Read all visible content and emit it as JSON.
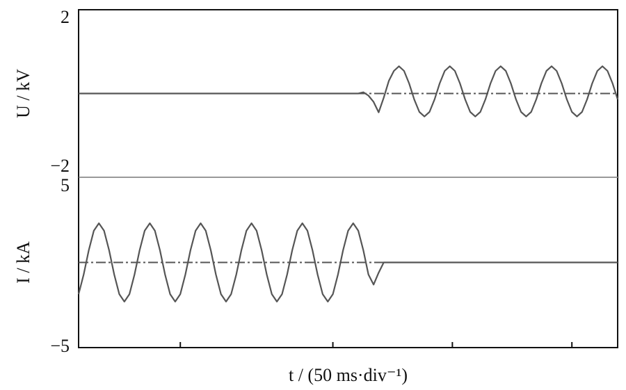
{
  "chart_data": [
    {
      "type": "line",
      "ylabel": "U / kV",
      "color": "#555555",
      "xlim": [
        0,
        212
      ],
      "ylim": [
        -2,
        2
      ],
      "yticks": [
        2,
        {
          "value": -2,
          "label": "−2"
        }
      ],
      "x": [
        0,
        110,
        112,
        114,
        116,
        118,
        120,
        122,
        124,
        126,
        128,
        130,
        132,
        134,
        136,
        138,
        140,
        142,
        144,
        146,
        148,
        150,
        152,
        154,
        156,
        158,
        160,
        162,
        164,
        166,
        168,
        170,
        172,
        174,
        176,
        178,
        180,
        182,
        184,
        186,
        188,
        190,
        192,
        194,
        196,
        198,
        200,
        202,
        204,
        206,
        208,
        210,
        212
      ],
      "values": [
        0,
        0,
        0.03,
        -0.05,
        -0.2,
        -0.45,
        -0.1,
        0.3,
        0.54,
        0.65,
        0.54,
        0.24,
        -0.14,
        -0.44,
        -0.55,
        -0.44,
        -0.14,
        0.24,
        0.54,
        0.65,
        0.54,
        0.24,
        -0.14,
        -0.44,
        -0.55,
        -0.44,
        -0.14,
        0.24,
        0.54,
        0.65,
        0.54,
        0.24,
        -0.14,
        -0.44,
        -0.55,
        -0.44,
        -0.14,
        0.24,
        0.54,
        0.65,
        0.54,
        0.24,
        -0.14,
        -0.44,
        -0.55,
        -0.44,
        -0.14,
        0.24,
        0.54,
        0.65,
        0.54,
        0.24,
        -0.14
      ]
    },
    {
      "type": "line",
      "ylabel": "I / kA",
      "xlabel": "t / (50 ms·div⁻¹)",
      "color": "#555555",
      "xlim": [
        0,
        212
      ],
      "ylim": [
        -5,
        5
      ],
      "yticks": [
        5,
        {
          "value": -5,
          "label": "−5"
        }
      ],
      "xticks": [
        40,
        100,
        147,
        194
      ],
      "x": [
        0,
        2,
        4,
        6,
        8,
        10,
        12,
        14,
        16,
        18,
        20,
        22,
        24,
        26,
        28,
        30,
        32,
        34,
        36,
        38,
        40,
        42,
        44,
        46,
        48,
        50,
        52,
        54,
        56,
        58,
        60,
        62,
        64,
        66,
        68,
        70,
        72,
        74,
        76,
        78,
        80,
        82,
        84,
        86,
        88,
        90,
        92,
        94,
        96,
        98,
        100,
        102,
        104,
        106,
        108,
        110,
        112,
        114,
        116,
        118,
        120,
        212
      ],
      "values": [
        -1.86,
        -0.71,
        0.71,
        1.86,
        2.3,
        1.86,
        0.71,
        -0.71,
        -1.86,
        -2.3,
        -1.86,
        -0.71,
        0.71,
        1.86,
        2.3,
        1.86,
        0.71,
        -0.71,
        -1.86,
        -2.3,
        -1.86,
        -0.71,
        0.71,
        1.86,
        2.3,
        1.86,
        0.71,
        -0.71,
        -1.86,
        -2.3,
        -1.86,
        -0.71,
        0.71,
        1.86,
        2.3,
        1.86,
        0.71,
        -0.71,
        -1.86,
        -2.3,
        -1.86,
        -0.71,
        0.71,
        1.86,
        2.3,
        1.86,
        0.71,
        -0.71,
        -1.86,
        -2.3,
        -1.86,
        -0.71,
        0.71,
        1.86,
        2.3,
        1.86,
        0.71,
        -0.71,
        -1.3,
        -0.6,
        0,
        0
      ]
    }
  ]
}
